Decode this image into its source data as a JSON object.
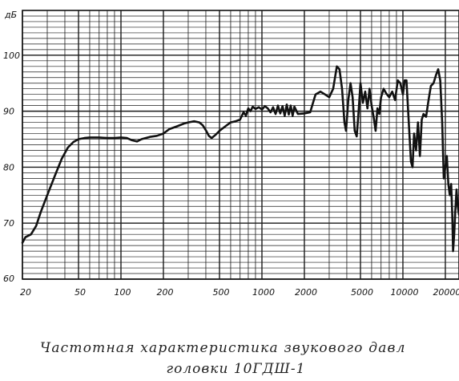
{
  "chart_data": {
    "type": "line",
    "title": "",
    "unit_label": "дБ",
    "xscale": "log",
    "xlim": [
      20,
      25000
    ],
    "ylim": [
      60,
      108
    ],
    "grid": true,
    "x_ticks": [
      {
        "value": 20,
        "label": "20"
      },
      {
        "value": 50,
        "label": "50"
      },
      {
        "value": 100,
        "label": "100"
      },
      {
        "value": 200,
        "label": "200"
      },
      {
        "value": 500,
        "label": "500"
      },
      {
        "value": 1000,
        "label": "1000"
      },
      {
        "value": 2000,
        "label": "2000"
      },
      {
        "value": 5000,
        "label": "5000"
      },
      {
        "value": 10000,
        "label": "10000"
      },
      {
        "value": 20000,
        "label": "20000"
      }
    ],
    "y_ticks": [
      {
        "value": 70,
        "label": "70"
      },
      {
        "value": 80,
        "label": "80"
      },
      {
        "value": 90,
        "label": "90"
      },
      {
        "value": 100,
        "label": "100"
      }
    ],
    "series": [
      {
        "color": "#111111",
        "points": [
          [
            20,
            66.5
          ],
          [
            21,
            67.5
          ],
          [
            23,
            68
          ],
          [
            25,
            69.5
          ],
          [
            27,
            72
          ],
          [
            30,
            75
          ],
          [
            34,
            78.5
          ],
          [
            38,
            81.5
          ],
          [
            42,
            83.5
          ],
          [
            46,
            84.5
          ],
          [
            50,
            85
          ],
          [
            55,
            85.2
          ],
          [
            60,
            85.3
          ],
          [
            70,
            85.3
          ],
          [
            80,
            85.2
          ],
          [
            90,
            85.2
          ],
          [
            100,
            85.3
          ],
          [
            110,
            85.2
          ],
          [
            120,
            84.8
          ],
          [
            130,
            84.6
          ],
          [
            140,
            85.0
          ],
          [
            160,
            85.4
          ],
          [
            180,
            85.6
          ],
          [
            200,
            86.0
          ],
          [
            220,
            86.8
          ],
          [
            250,
            87.3
          ],
          [
            280,
            87.8
          ],
          [
            300,
            88.0
          ],
          [
            330,
            88.2
          ],
          [
            360,
            88.0
          ],
          [
            380,
            87.5
          ],
          [
            400,
            86.6
          ],
          [
            420,
            85.6
          ],
          [
            440,
            85.2
          ],
          [
            470,
            85.8
          ],
          [
            500,
            86.5
          ],
          [
            550,
            87.3
          ],
          [
            600,
            88.0
          ],
          [
            650,
            88.2
          ],
          [
            700,
            88.5
          ],
          [
            740,
            89.8
          ],
          [
            770,
            89.2
          ],
          [
            800,
            90.5
          ],
          [
            830,
            90.0
          ],
          [
            860,
            90.8
          ],
          [
            900,
            90.4
          ],
          [
            950,
            90.7
          ],
          [
            1000,
            90.3
          ],
          [
            1050,
            90.9
          ],
          [
            1100,
            90.5
          ],
          [
            1150,
            89.8
          ],
          [
            1200,
            90.7
          ],
          [
            1250,
            89.5
          ],
          [
            1300,
            91.0
          ],
          [
            1350,
            89.6
          ],
          [
            1400,
            90.9
          ],
          [
            1450,
            89.2
          ],
          [
            1500,
            91.2
          ],
          [
            1550,
            89.4
          ],
          [
            1600,
            91.0
          ],
          [
            1650,
            89.2
          ],
          [
            1700,
            90.8
          ],
          [
            1800,
            89.5
          ],
          [
            2000,
            89.6
          ],
          [
            2200,
            89.8
          ],
          [
            2400,
            93.0
          ],
          [
            2600,
            93.5
          ],
          [
            2800,
            93.0
          ],
          [
            3000,
            92.5
          ],
          [
            3200,
            94.0
          ],
          [
            3400,
            98.0
          ],
          [
            3550,
            97.5
          ],
          [
            3700,
            94.0
          ],
          [
            3850,
            88.0
          ],
          [
            3950,
            86.5
          ],
          [
            4100,
            92.0
          ],
          [
            4250,
            95.0
          ],
          [
            4400,
            92.5
          ],
          [
            4550,
            86.5
          ],
          [
            4700,
            85.5
          ],
          [
            4850,
            90.0
          ],
          [
            5000,
            95.0
          ],
          [
            5200,
            91.5
          ],
          [
            5400,
            93.5
          ],
          [
            5600,
            90.5
          ],
          [
            5800,
            94.0
          ],
          [
            6000,
            91.0
          ],
          [
            6200,
            89.0
          ],
          [
            6400,
            86.5
          ],
          [
            6600,
            90.5
          ],
          [
            6800,
            89.5
          ],
          [
            7000,
            92.5
          ],
          [
            7300,
            94.0
          ],
          [
            7600,
            93.2
          ],
          [
            8000,
            92.5
          ],
          [
            8400,
            93.5
          ],
          [
            8800,
            92.0
          ],
          [
            9200,
            95.5
          ],
          [
            9600,
            95.0
          ],
          [
            10000,
            93.0
          ],
          [
            10300,
            95.5
          ],
          [
            10600,
            95.5
          ],
          [
            11000,
            88.0
          ],
          [
            11400,
            81.0
          ],
          [
            11700,
            80.0
          ],
          [
            12000,
            86.0
          ],
          [
            12400,
            83.0
          ],
          [
            12800,
            88.0
          ],
          [
            13200,
            82.0
          ],
          [
            13600,
            88.5
          ],
          [
            14000,
            89.5
          ],
          [
            14600,
            89.0
          ],
          [
            15200,
            92.0
          ],
          [
            15800,
            94.5
          ],
          [
            16500,
            95.0
          ],
          [
            17200,
            96.5
          ],
          [
            17800,
            97.5
          ],
          [
            18400,
            95.5
          ],
          [
            19000,
            88.0
          ],
          [
            19500,
            78.0
          ],
          [
            20000,
            80.0
          ],
          [
            20500,
            82.0
          ],
          [
            21000,
            77.0
          ],
          [
            21500,
            75.0
          ],
          [
            22000,
            77.0
          ],
          [
            22400,
            71.5
          ],
          [
            22700,
            65.0
          ],
          [
            23100,
            68.0
          ],
          [
            23500,
            72.0
          ],
          [
            24000,
            76.0
          ],
          [
            24500,
            73.0
          ],
          [
            25000,
            71.5
          ]
        ]
      }
    ],
    "caption": [
      "Частотная характеристика звукового давл",
      "головки 10ГДШ-1"
    ]
  }
}
